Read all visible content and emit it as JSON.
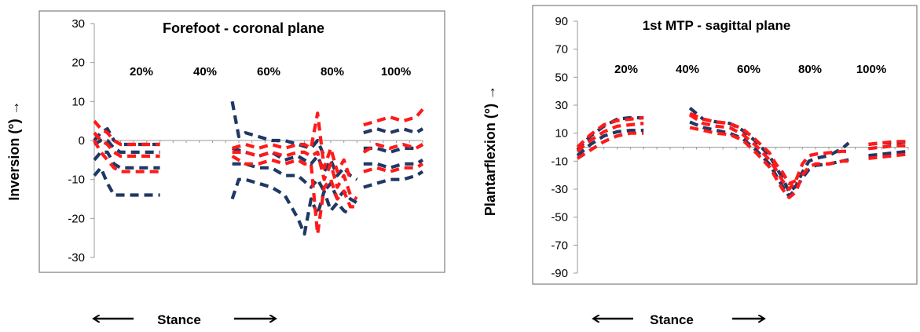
{
  "chart_data": [
    {
      "type": "line",
      "title": "Forefoot - coronal plane",
      "ylabel": "Inversion (°) →",
      "xlabel": "Stance",
      "ylim": [
        -30,
        30
      ],
      "yticks": [
        "30",
        "20",
        "10",
        "0",
        "-10",
        "-20",
        "-30"
      ],
      "xlim": [
        0,
        100
      ],
      "phase_labels": [
        "20%",
        "40%",
        "60%",
        "80%",
        "100%"
      ],
      "grid": false,
      "series": [
        {
          "color": "#1f3864",
          "segments": [
            {
              "x": [
                0,
                2,
                4,
                6,
                8,
                12,
                16,
                20
              ],
              "y": [
                -1,
                0,
                0,
                -2,
                -3,
                -3,
                -3,
                -3
              ]
            },
            {
              "x": [
                42,
                46,
                50,
                54,
                58,
                62,
                66,
                68,
                70,
                72,
                74,
                76,
                78,
                80
              ],
              "y": [
                -2,
                -3,
                -4,
                -3,
                -5,
                -4,
                -6,
                -4,
                -8,
                -5,
                -9,
                -7,
                -9,
                -10
              ]
            },
            {
              "x": [
                82,
                86,
                90,
                94,
                98,
                100
              ],
              "y": [
                -2,
                -2,
                -3,
                -2,
                -2,
                -1
              ]
            }
          ]
        },
        {
          "color": "#1f3864",
          "segments": [
            {
              "x": [
                0,
                2,
                4,
                6,
                8,
                12,
                16,
                20
              ],
              "y": [
                -5,
                -3,
                -3,
                -6,
                -7,
                -7,
                -7,
                -7
              ]
            },
            {
              "x": [
                42,
                46,
                50,
                54,
                58,
                62,
                66,
                68,
                70,
                72,
                74,
                76,
                78,
                80
              ],
              "y": [
                -6,
                -6,
                -7,
                -7,
                -9,
                -9,
                -12,
                -10,
                -13,
                -11,
                -15,
                -13,
                -15,
                -16
              ]
            },
            {
              "x": [
                82,
                86,
                90,
                94,
                98,
                100
              ],
              "y": [
                -6,
                -6,
                -7,
                -6,
                -6,
                -5
              ]
            }
          ]
        },
        {
          "color": "#1f3864",
          "segments": [
            {
              "x": [
                0,
                2,
                4,
                6,
                8,
                12,
                16,
                20
              ],
              "y": [
                -9,
                -7,
                -11,
                -14,
                -14,
                -14,
                -14,
                -14
              ]
            },
            {
              "x": [
                42,
                44,
                46,
                50,
                54,
                58,
                60,
                62,
                64,
                66,
                68,
                70,
                72,
                74,
                76,
                78
              ],
              "y": [
                -15,
                -10,
                -10,
                -11,
                -12,
                -14,
                -17,
                -20,
                -24,
                -15,
                -19,
                -13,
                -18,
                -16,
                -18,
                -19
              ]
            },
            {
              "x": [
                82,
                86,
                90,
                94,
                98,
                100
              ],
              "y": [
                -12,
                -11,
                -10,
                -10,
                -9,
                -8
              ]
            }
          ]
        },
        {
          "color": "#1f3864",
          "segments": [
            {
              "x": [
                0,
                2,
                4,
                6,
                8,
                12,
                16,
                20
              ],
              "y": [
                0,
                2,
                3,
                0,
                -1,
                -1,
                -1,
                -1
              ]
            },
            {
              "x": [
                42,
                44,
                46,
                50,
                54,
                58,
                62,
                66,
                68,
                70
              ],
              "y": [
                10,
                1,
                2,
                1,
                0,
                0,
                -1,
                -2,
                0,
                -4
              ]
            },
            {
              "x": [
                82,
                86,
                90,
                94,
                98,
                100
              ],
              "y": [
                2,
                3,
                2,
                3,
                2,
                3
              ]
            }
          ]
        },
        {
          "color": "#ff1a1a",
          "segments": [
            {
              "x": [
                0,
                2,
                4,
                6,
                8,
                12,
                16,
                20
              ],
              "y": [
                2,
                0,
                -1,
                -3,
                -4,
                -4,
                -4,
                -4
              ]
            },
            {
              "x": [
                42,
                46,
                50,
                54,
                58,
                62,
                64,
                66,
                68,
                70,
                72,
                74,
                76,
                78,
                80
              ],
              "y": [
                -3,
                -3,
                -4,
                -3,
                -4,
                -3,
                -3,
                -4,
                -3,
                -10,
                -6,
                -12,
                -9,
                -14,
                -15
              ]
            },
            {
              "x": [
                82,
                86,
                90,
                94,
                98,
                100
              ],
              "y": [
                -3,
                -1,
                -2,
                -1,
                -2,
                -1
              ]
            }
          ]
        },
        {
          "color": "#ff1a1a",
          "segments": [
            {
              "x": [
                0,
                2,
                4,
                6,
                8,
                12,
                16,
                20
              ],
              "y": [
                5,
                3,
                2,
                0,
                -1,
                -1,
                -1,
                -1
              ]
            },
            {
              "x": [
                42,
                46,
                50,
                54,
                58,
                62,
                64,
                66,
                68,
                70,
                72,
                74,
                76,
                78
              ],
              "y": [
                -2,
                -1,
                -2,
                -1,
                -2,
                -1,
                -1,
                -2,
                7,
                -7,
                -2,
                -8,
                -5,
                -10
              ]
            },
            {
              "x": [
                82,
                86,
                90,
                94,
                98,
                100
              ],
              "y": [
                4,
                5,
                6,
                5,
                6,
                8
              ]
            }
          ]
        },
        {
          "color": "#ff1a1a",
          "segments": [
            {
              "x": [
                0,
                2,
                4,
                6,
                8,
                12,
                16,
                20
              ],
              "y": [
                0,
                -3,
                -5,
                -7,
                -8,
                -8,
                -8,
                -8
              ]
            },
            {
              "x": [
                42,
                46,
                50,
                54,
                58,
                62,
                64,
                66,
                68,
                70,
                72,
                74,
                76,
                78,
                80
              ],
              "y": [
                -4,
                -6,
                -6,
                -5,
                -6,
                -5,
                -6,
                -6,
                -24,
                -12,
                -10,
                -15,
                -13,
                -17,
                -17
              ]
            },
            {
              "x": [
                82,
                86,
                90,
                94,
                98,
                100
              ],
              "y": [
                -8,
                -7,
                -8,
                -7,
                -7,
                -6
              ]
            }
          ]
        }
      ]
    },
    {
      "type": "line",
      "title": "1st MTP - sagittal plane",
      "ylabel": "Plantarflexion (°) →",
      "xlabel": "Stance",
      "ylim": [
        -90,
        90
      ],
      "yticks": [
        "90",
        "70",
        "50",
        "30",
        "10",
        "-10",
        "-30",
        "-50",
        "-70",
        "-90"
      ],
      "xlim": [
        0,
        100
      ],
      "phase_labels": [
        "20%",
        "40%",
        "60%",
        "80%",
        "100%"
      ],
      "grid": false,
      "series": [
        {
          "color": "#1f3864",
          "segments": [
            {
              "x": [
                0,
                4,
                8,
                12,
                16,
                20
              ],
              "y": [
                -2,
                8,
                15,
                20,
                21,
                21
              ]
            },
            {
              "x": [
                34,
                38,
                42,
                46,
                50,
                54,
                58,
                60,
                62,
                64,
                66,
                68,
                70,
                72,
                76,
                80,
                82
              ],
              "y": [
                28,
                20,
                18,
                17,
                12,
                4,
                -6,
                -14,
                -22,
                -32,
                -28,
                -18,
                -10,
                -8,
                -6,
                -1,
                3
              ]
            },
            {
              "x": [
                88,
                92,
                96,
                100
              ],
              "y": [
                2,
                3,
                3,
                4
              ]
            }
          ]
        },
        {
          "color": "#1f3864",
          "segments": [
            {
              "x": [
                0,
                4,
                8,
                12,
                16,
                20
              ],
              "y": [
                -6,
                2,
                8,
                11,
                12,
                12
              ]
            },
            {
              "x": [
                34,
                38,
                42,
                46,
                50,
                54,
                58,
                60,
                62,
                64,
                66,
                68,
                70,
                72,
                76,
                80,
                82
              ],
              "y": [
                18,
                14,
                12,
                10,
                6,
                -2,
                -12,
                -20,
                -28,
                -35,
                -30,
                -22,
                -16,
                -13,
                -12,
                -10,
                -9
              ]
            },
            {
              "x": [
                88,
                92,
                96,
                100
              ],
              "y": [
                -6,
                -5,
                -4,
                -3
              ]
            }
          ]
        },
        {
          "color": "#ff1a1a",
          "segments": [
            {
              "x": [
                0,
                4,
                8,
                12,
                16,
                20
              ],
              "y": [
                -3,
                5,
                11,
                15,
                16,
                17
              ]
            },
            {
              "x": [
                34,
                38,
                42,
                46,
                50,
                54,
                58,
                60,
                62,
                64,
                66,
                68,
                70,
                72,
                76,
                80,
                82
              ],
              "y": [
                23,
                17,
                15,
                14,
                9,
                1,
                -9,
                -16,
                -24,
                -30,
                -24,
                -12,
                -6,
                -5,
                -4,
                -3,
                -3
              ]
            },
            {
              "x": [
                88,
                92,
                96,
                100
              ],
              "y": [
                -1,
                0,
                1,
                1
              ]
            }
          ]
        },
        {
          "color": "#ff1a1a",
          "segments": [
            {
              "x": [
                0,
                4,
                8,
                12,
                16,
                20
              ],
              "y": [
                -8,
                -2,
                4,
                8,
                10,
                10
              ]
            },
            {
              "x": [
                34,
                38,
                42,
                46,
                50,
                54,
                58,
                60,
                62,
                64,
                66,
                68,
                70,
                72,
                76,
                80,
                82
              ],
              "y": [
                14,
                12,
                10,
                9,
                5,
                -4,
                -14,
                -22,
                -30,
                -36,
                -32,
                -20,
                -14,
                -12,
                -12,
                -10,
                -10
              ]
            },
            {
              "x": [
                88,
                92,
                96,
                100
              ],
              "y": [
                -8,
                -7,
                -6,
                -5
              ]
            }
          ]
        },
        {
          "color": "#ff1a1a",
          "segments": [
            {
              "x": [
                0,
                4,
                8,
                12,
                16,
                20
              ],
              "y": [
                0,
                9,
                16,
                19,
                20,
                21
              ]
            },
            {
              "x": [
                34,
                38,
                42,
                46,
                50,
                54,
                58,
                60,
                62,
                64,
                66
              ],
              "y": [
                24,
                20,
                18,
                17,
                13,
                5,
                -4,
                -12,
                -18,
                -26,
                -24
              ]
            },
            {
              "x": [
                88,
                92,
                96,
                100
              ],
              "y": [
                2,
                3,
                4,
                4
              ]
            }
          ]
        }
      ]
    }
  ]
}
